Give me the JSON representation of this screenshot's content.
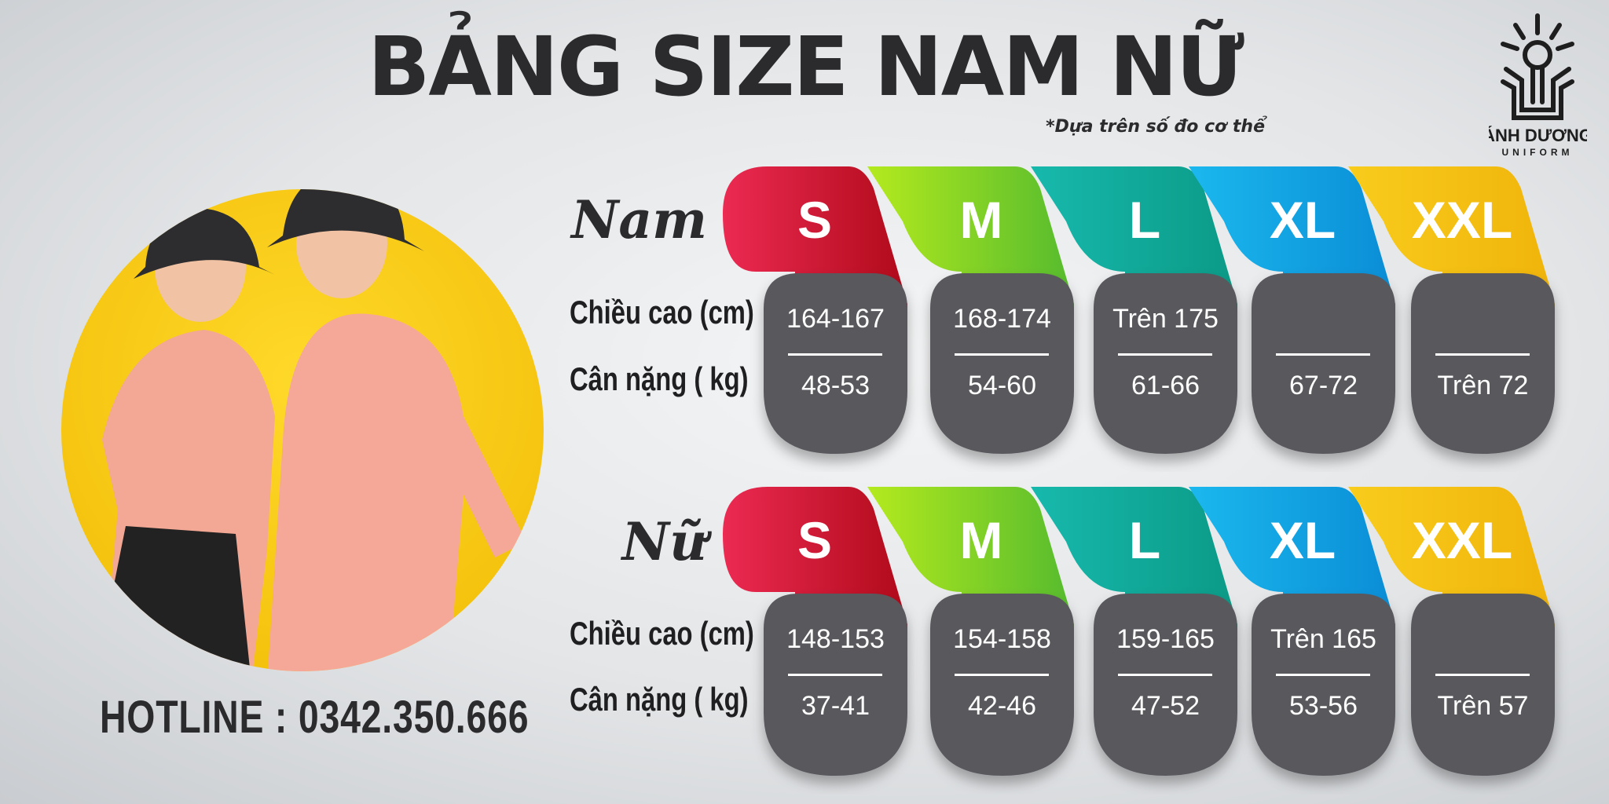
{
  "header": {
    "title": "BẢNG SIZE NAM NỮ",
    "subtitle": "*Dựa trên số đo cơ thể"
  },
  "logo": {
    "name": "ÁNH DƯƠNG",
    "tagline": "UNIFORM"
  },
  "hotline": "HOTLINE : 0342.350.666",
  "sizes": [
    {
      "label": "S",
      "color_from": "#ec2a52",
      "color_to": "#b00a1a"
    },
    {
      "label": "M",
      "color_from": "#b4ea1e",
      "color_to": "#55bb2e"
    },
    {
      "label": "L",
      "color_from": "#17b9ad",
      "color_to": "#0b9a86"
    },
    {
      "label": "XL",
      "color_from": "#1bb8ee",
      "color_to": "#0a8dd6"
    },
    {
      "label": "XXL",
      "color_from": "#f8cc1c",
      "color_to": "#f0b40a"
    }
  ],
  "card_color": "#58585d",
  "row_labels": {
    "height": "Chiều cao (cm)",
    "weight": "Cân nặng  ( kg)"
  },
  "tables": [
    {
      "label": "Nam",
      "heights": [
        "164-167",
        "168-174",
        "Trên 175",
        "",
        ""
      ],
      "weights": [
        "48-53",
        "54-60",
        "61-66",
        "67-72",
        "Trên 72"
      ]
    },
    {
      "label": "Nữ",
      "heights": [
        "148-153",
        "154-158",
        "159-165",
        "Trên 165",
        ""
      ],
      "weights": [
        "37-41",
        "42-46",
        "47-52",
        "53-56",
        "Trên 57"
      ]
    }
  ]
}
